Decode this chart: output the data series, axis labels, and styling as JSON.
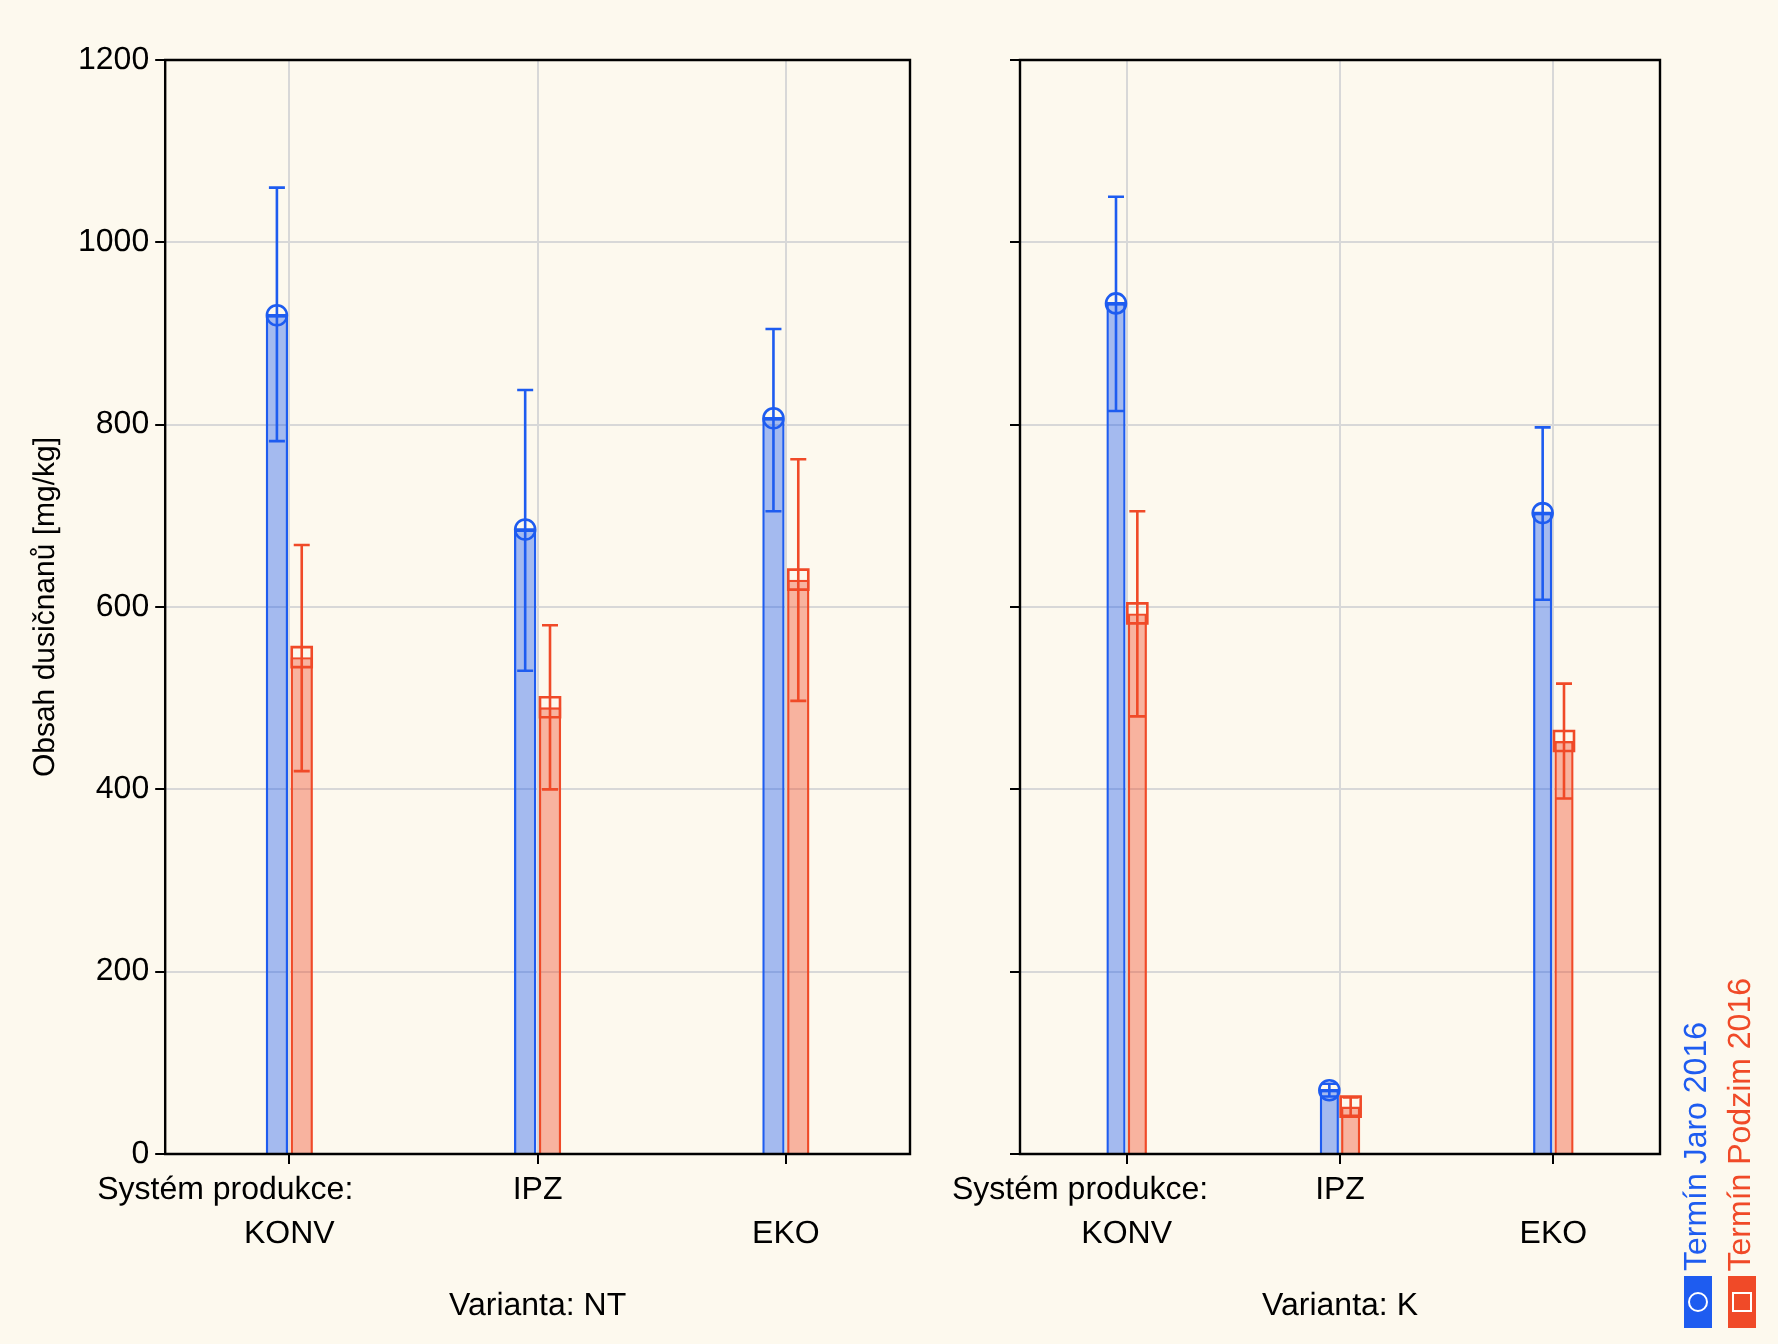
{
  "chart_data": [
    {
      "type": "bar",
      "xlabel": "Varianta: NT",
      "ylabel": "Obsah dusičnanů [mg/kg]",
      "annotations": [
        "Systém produkce:"
      ],
      "categories": [
        "KONV",
        "IPZ",
        "EKO"
      ],
      "ylim": [
        0,
        1200
      ],
      "yticks": [
        0,
        200,
        400,
        600,
        800,
        1000,
        1200
      ],
      "grid": true,
      "series": [
        {
          "color": "#1e5cf0",
          "values": [
            920,
            685,
            807
          ],
          "errors": [
            [
              782,
              1060
            ],
            [
              530,
              838
            ],
            [
              705,
              905
            ]
          ]
        },
        {
          "color": "#f04a28",
          "values": [
            545,
            490,
            630
          ],
          "errors": [
            [
              420,
              668
            ],
            [
              400,
              580
            ],
            [
              497,
              762
            ]
          ]
        },
        {
          "type": "scatter",
          "color": "#1e5cf0",
          "marker": "circle",
          "x": [
            "KONV",
            "IPZ",
            "EKO"
          ],
          "values": [
            920,
            685,
            807
          ]
        },
        {
          "type": "scatter",
          "color": "#f04a28",
          "marker": "square",
          "x": [
            "KONV",
            "IPZ",
            "EKO"
          ],
          "values": [
            545,
            490,
            630
          ]
        }
      ]
    },
    {
      "type": "bar",
      "xlabel": "Varianta: K",
      "annotations": [
        "Systém produkce:"
      ],
      "categories": [
        "KONV",
        "IPZ",
        "EKO"
      ],
      "ylim": [
        0,
        1200
      ],
      "yticks": [
        0,
        200,
        400,
        600,
        800,
        1000,
        1200
      ],
      "grid": true,
      "tick_labels": "x",
      "legend": "right",
      "series": [
        {
          "name": "Termín Jaro 2016",
          "color": "#1e5cf0",
          "values": [
            933,
            70,
            703
          ],
          "errors": [
            [
              815,
              1050
            ],
            [
              63,
              77
            ],
            [
              608,
              797
            ]
          ]
        },
        {
          "name": "Termín Podzim 2016",
          "color": "#f04a28",
          "values": [
            593,
            52,
            453
          ],
          "errors": [
            [
              480,
              705
            ],
            [
              42,
              62
            ],
            [
              390,
              516
            ]
          ]
        },
        {
          "type": "scatter",
          "color": "#1e5cf0",
          "marker": "circle",
          "x": [
            "KONV",
            "IPZ",
            "EKO"
          ],
          "values": [
            933,
            70,
            703
          ]
        },
        {
          "type": "scatter",
          "color": "#f04a28",
          "marker": "square",
          "x": [
            "KONV",
            "IPZ",
            "EKO"
          ],
          "values": [
            593,
            52,
            453
          ]
        }
      ]
    }
  ]
}
